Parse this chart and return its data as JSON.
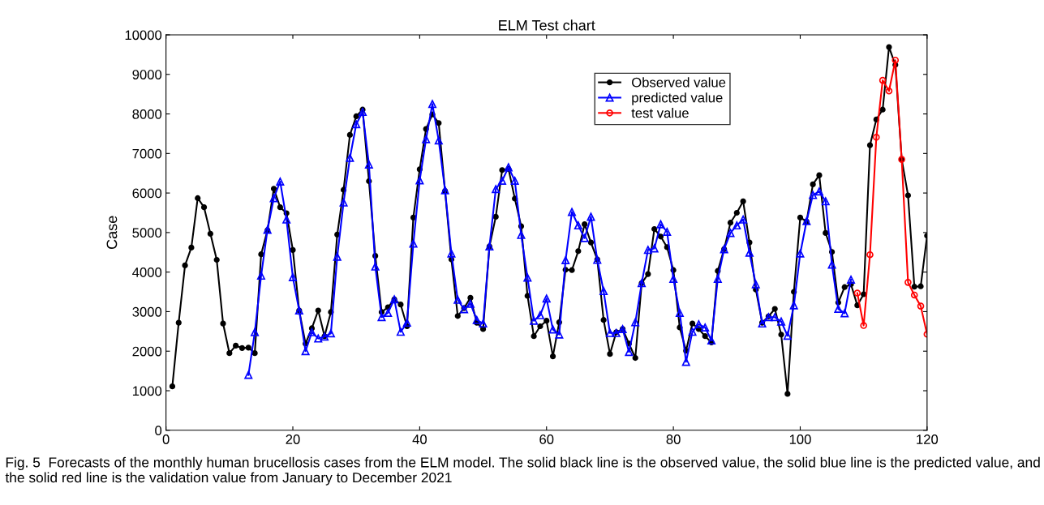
{
  "chart_data": {
    "type": "line",
    "title": "ELM Test chart",
    "ylabel": "Case",
    "xlim": [
      0,
      120
    ],
    "xticks": [
      0,
      20,
      40,
      60,
      80,
      100,
      120
    ],
    "ylim": [
      0,
      10000
    ],
    "yticks": [
      0,
      1000,
      2000,
      3000,
      4000,
      5000,
      6000,
      7000,
      8000,
      9000,
      10000
    ],
    "grid": false,
    "legend": "top right",
    "series": [
      {
        "name": "Observed value",
        "color": "#000000",
        "marker": "circle",
        "x": [
          1,
          2,
          3,
          4,
          5,
          6,
          7,
          8,
          9,
          10,
          11,
          12,
          13,
          14,
          15,
          16,
          17,
          18,
          19,
          20,
          21,
          22,
          23,
          24,
          25,
          26,
          27,
          28,
          29,
          30,
          31,
          32,
          33,
          34,
          35,
          36,
          37,
          38,
          39,
          40,
          41,
          42,
          43,
          44,
          45,
          46,
          47,
          48,
          49,
          50,
          51,
          52,
          53,
          54,
          55,
          56,
          57,
          58,
          59,
          60,
          61,
          62,
          63,
          64,
          65,
          66,
          67,
          68,
          69,
          70,
          71,
          72,
          73,
          74,
          75,
          76,
          77,
          78,
          79,
          80,
          81,
          82,
          83,
          84,
          85,
          86,
          87,
          88,
          89,
          90,
          91,
          92,
          93,
          94,
          95,
          96,
          97,
          98,
          99,
          100,
          101,
          102,
          103,
          104,
          105,
          106,
          107,
          108,
          109,
          110,
          111,
          112,
          113,
          114,
          115,
          116,
          117,
          118,
          119,
          120
        ],
        "values": [
          1110,
          2720,
          4170,
          4620,
          5870,
          5640,
          4970,
          4310,
          2700,
          1950,
          2140,
          2080,
          2090,
          1950,
          4450,
          5060,
          6110,
          5640,
          5490,
          4560,
          3030,
          2190,
          2580,
          3030,
          2380,
          2990,
          4950,
          6080,
          7470,
          7940,
          8110,
          6300,
          4410,
          2990,
          3110,
          3310,
          3180,
          2630,
          5380,
          6600,
          7620,
          7990,
          7770,
          6050,
          4320,
          2890,
          3090,
          3350,
          2720,
          2560,
          4650,
          5400,
          6580,
          6610,
          5860,
          5160,
          3400,
          2380,
          2630,
          2770,
          1870,
          2730,
          4060,
          4050,
          4530,
          5210,
          4750,
          4320,
          2790,
          1930,
          2480,
          2560,
          2190,
          1830,
          3720,
          3950,
          5090,
          4900,
          4630,
          4050,
          2600,
          2010,
          2700,
          2560,
          2380,
          2220,
          4030,
          4580,
          5250,
          5500,
          5790,
          4750,
          3560,
          2720,
          2880,
          3070,
          2420,
          920,
          3500,
          5380,
          5280,
          6220,
          6450,
          4990,
          4510,
          3230,
          3620,
          3690,
          3160,
          3440,
          7210,
          7860,
          8110,
          9690,
          9240,
          6850,
          5940,
          3630,
          3640,
          4920
        ]
      },
      {
        "name": "predicted value",
        "color": "#0000ff",
        "marker": "triangle",
        "x": [
          13,
          14,
          15,
          16,
          17,
          18,
          19,
          20,
          21,
          22,
          23,
          24,
          25,
          26,
          27,
          28,
          29,
          30,
          31,
          32,
          33,
          34,
          35,
          36,
          37,
          38,
          39,
          40,
          41,
          42,
          43,
          44,
          45,
          46,
          47,
          48,
          49,
          50,
          51,
          52,
          53,
          54,
          55,
          56,
          57,
          58,
          59,
          60,
          61,
          62,
          63,
          64,
          65,
          66,
          67,
          68,
          69,
          70,
          71,
          72,
          73,
          74,
          75,
          76,
          77,
          78,
          79,
          80,
          81,
          82,
          83,
          84,
          85,
          86,
          87,
          88,
          89,
          90,
          91,
          92,
          93,
          94,
          95,
          96,
          97,
          98,
          99,
          100,
          101,
          102,
          103,
          104,
          105,
          106,
          107,
          108
        ],
        "values": [
          1400,
          2480,
          3910,
          5070,
          5870,
          6290,
          5330,
          3870,
          3030,
          2000,
          2480,
          2320,
          2370,
          2450,
          4390,
          5760,
          6890,
          7740,
          8050,
          6720,
          4140,
          2860,
          2970,
          3310,
          2490,
          2720,
          4720,
          6320,
          7360,
          8250,
          7330,
          6070,
          4470,
          3300,
          3060,
          3200,
          2790,
          2700,
          4650,
          6100,
          6310,
          6650,
          6310,
          4940,
          3860,
          2770,
          2910,
          3330,
          2550,
          2420,
          4300,
          5520,
          5180,
          4860,
          5400,
          4310,
          3520,
          2460,
          2460,
          2560,
          1980,
          2730,
          3720,
          4560,
          4600,
          5210,
          5020,
          3830,
          2970,
          1730,
          2490,
          2680,
          2600,
          2270,
          3830,
          4580,
          4990,
          5180,
          5330,
          4490,
          3690,
          2700,
          2860,
          2860,
          2750,
          2390,
          3160,
          4470,
          5290,
          5950,
          6040,
          5790,
          4190,
          3070,
          2960,
          3810
        ]
      },
      {
        "name": "test value",
        "color": "#ff0000",
        "marker": "circle_open",
        "x": [
          109,
          110,
          111,
          112,
          113,
          114,
          115,
          116,
          117,
          118,
          119,
          120
        ],
        "values": [
          3470,
          2650,
          4440,
          7410,
          8850,
          8580,
          9360,
          6850,
          3740,
          3420,
          3140,
          2430
        ]
      }
    ],
    "annotations": [
      "Fig. 5  Forecasts of the monthly human brucellosis cases from the ELM model. The solid black line is the observed value, the solid blue line is the predicted value, and the solid red line is the validation value from January to December 2021"
    ]
  }
}
